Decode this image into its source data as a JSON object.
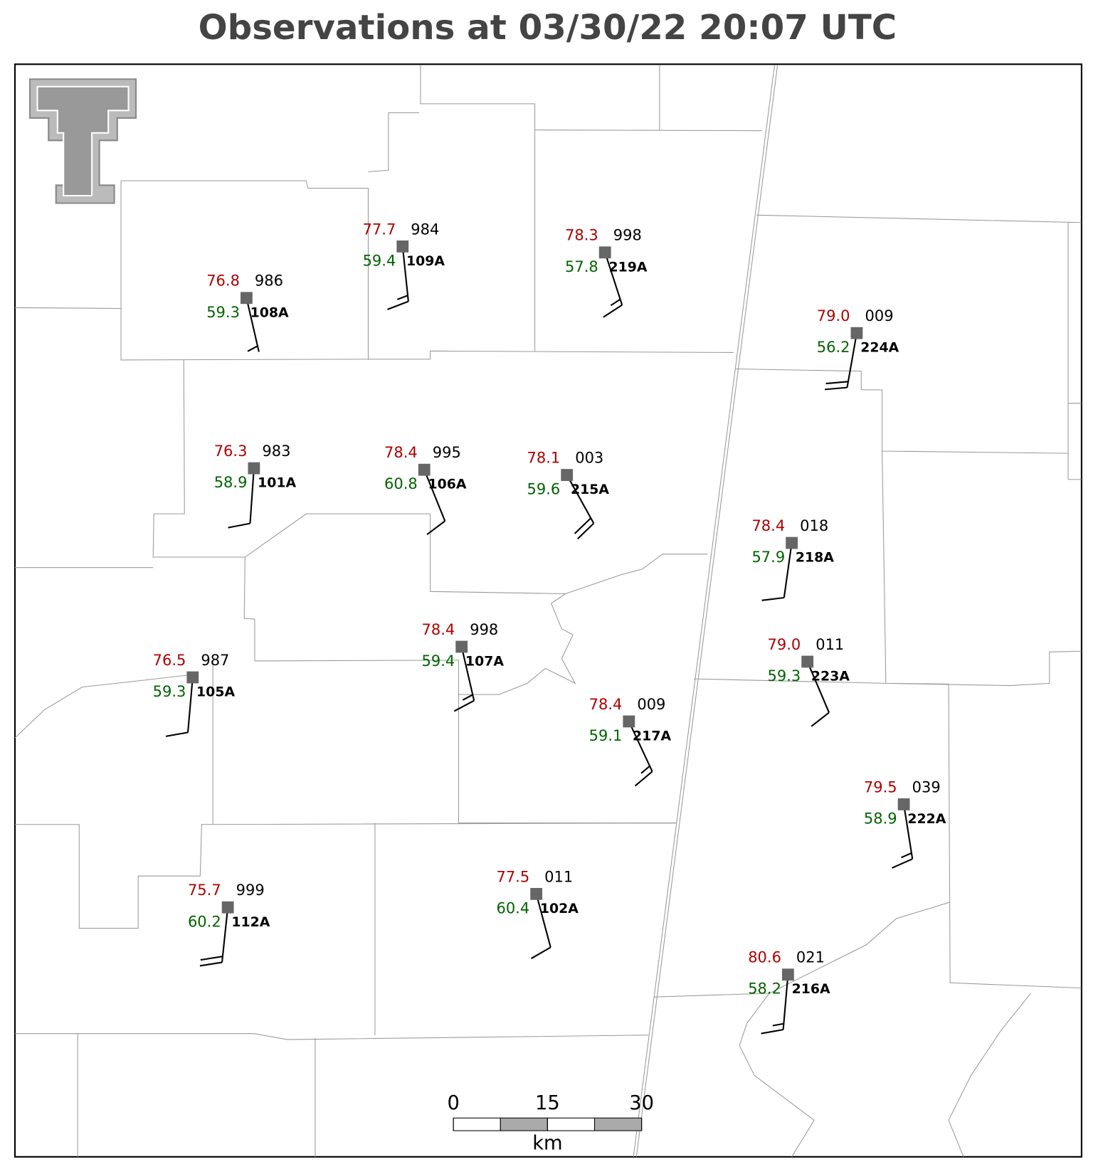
{
  "title": "Observations at 03/30/22 20:07 UTC",
  "stations": [
    {
      "id": "108A",
      "temperature": "76.8",
      "dewpoint": "59.3",
      "pressure": "986",
      "wind_dir": 167,
      "wind_kt": 5
    },
    {
      "id": "109A",
      "temperature": "77.7",
      "dewpoint": "59.4",
      "pressure": "984",
      "wind_dir": 174,
      "wind_kt": 15
    },
    {
      "id": "219A",
      "temperature": "78.3",
      "dewpoint": "57.8",
      "pressure": "998",
      "wind_dir": 162,
      "wind_kt": 15
    },
    {
      "id": "224A",
      "temperature": "79.0",
      "dewpoint": "56.2",
      "pressure": "009",
      "wind_dir": 190,
      "wind_kt": 20
    },
    {
      "id": "101A",
      "temperature": "76.3",
      "dewpoint": "58.9",
      "pressure": "983",
      "wind_dir": 184,
      "wind_kt": 10
    },
    {
      "id": "106A",
      "temperature": "78.4",
      "dewpoint": "60.8",
      "pressure": "995",
      "wind_dir": 158,
      "wind_kt": 10
    },
    {
      "id": "215A",
      "temperature": "78.1",
      "dewpoint": "59.6",
      "pressure": "003",
      "wind_dir": 151,
      "wind_kt": 20
    },
    {
      "id": "218A",
      "temperature": "78.4",
      "dewpoint": "57.9",
      "pressure": "018",
      "wind_dir": 188,
      "wind_kt": 10
    },
    {
      "id": "107A",
      "temperature": "78.4",
      "dewpoint": "59.4",
      "pressure": "998",
      "wind_dir": 167,
      "wind_kt": 15
    },
    {
      "id": "105A",
      "temperature": "76.5",
      "dewpoint": "59.3",
      "pressure": "987",
      "wind_dir": 185,
      "wind_kt": 10
    },
    {
      "id": "223A",
      "temperature": "79.0",
      "dewpoint": "59.3",
      "pressure": "011",
      "wind_dir": 157,
      "wind_kt": 10
    },
    {
      "id": "217A",
      "temperature": "78.4",
      "dewpoint": "59.1",
      "pressure": "009",
      "wind_dir": 155,
      "wind_kt": 15
    },
    {
      "id": "222A",
      "temperature": "79.5",
      "dewpoint": "58.9",
      "pressure": "039",
      "wind_dir": 171,
      "wind_kt": 15
    },
    {
      "id": "112A",
      "temperature": "75.7",
      "dewpoint": "60.2",
      "pressure": "999",
      "wind_dir": 186,
      "wind_kt": 20
    },
    {
      "id": "102A",
      "temperature": "77.5",
      "dewpoint": "60.4",
      "pressure": "011",
      "wind_dir": 165,
      "wind_kt": 10
    },
    {
      "id": "216A",
      "temperature": "80.6",
      "dewpoint": "58.2",
      "pressure": "021",
      "wind_dir": 185,
      "wind_kt": 15
    }
  ],
  "scale_bar": {
    "ticks": [
      0,
      15,
      30
    ],
    "unit": "km"
  }
}
